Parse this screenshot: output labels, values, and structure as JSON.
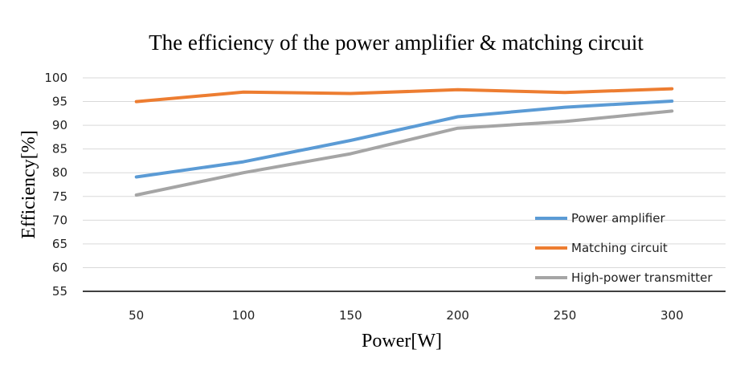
{
  "chart_data": {
    "type": "line",
    "title": "The efficiency of the power amplifier & matching circuit",
    "xlabel": "Power[W]",
    "ylabel": "Efficiency[%]",
    "categories": [
      "50",
      "100",
      "150",
      "200",
      "250",
      "300"
    ],
    "y_ticks": [
      "55",
      "60",
      "65",
      "70",
      "75",
      "80",
      "85",
      "90",
      "95",
      "100"
    ],
    "ylim": [
      55,
      100
    ],
    "grid": true,
    "legend_position": "bottom-right",
    "series": [
      {
        "name": "Power amplifier",
        "color": "#5b9bd5",
        "values": [
          79.1,
          82.3,
          86.8,
          91.8,
          93.8,
          95.1
        ]
      },
      {
        "name": "Matching circuit",
        "color": "#ed7d31",
        "values": [
          95.0,
          97.0,
          96.7,
          97.5,
          96.9,
          97.7
        ]
      },
      {
        "name": "High-power transmitter",
        "color": "#a5a5a5",
        "values": [
          75.3,
          80.0,
          84.0,
          89.4,
          90.8,
          93.0
        ]
      }
    ]
  }
}
